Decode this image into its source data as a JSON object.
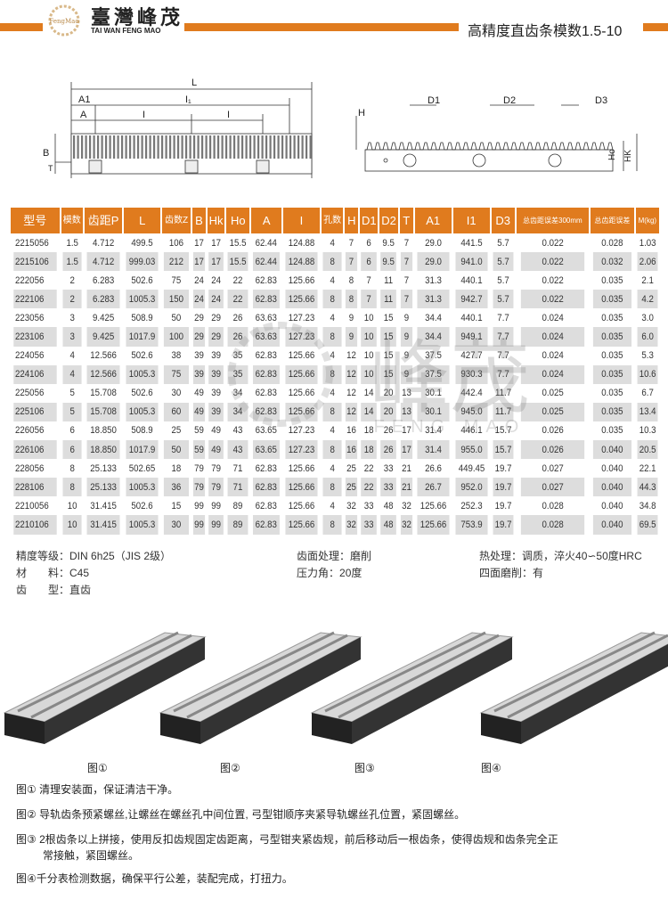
{
  "header": {
    "brand_cn": "臺灣峰茂",
    "brand_en": "TAI WAN FENG MAO",
    "logo_text": "FengMao",
    "title": "高精度直齿条模数1.5-10",
    "accent": "#e07b1e"
  },
  "drawing": {
    "labels": {
      "L": "L",
      "A1": "A1",
      "A": "A",
      "I": "I",
      "I1": "I₁",
      "B": "B",
      "T": "T",
      "H": "H",
      "D1": "D1",
      "D2": "D2",
      "D3": "D3",
      "Ho": "Ho",
      "Hk": "HK"
    }
  },
  "table": {
    "headers": [
      "型号",
      "模数",
      "齿距P",
      "L",
      "齿数Z",
      "B",
      "Hk",
      "Ho",
      "A",
      "I",
      "孔数",
      "H",
      "D1",
      "D2",
      "T",
      "A1",
      "I1",
      "D3",
      "总齿距误差300mm",
      "总齿距误差",
      "M(kg)"
    ],
    "rows": [
      [
        "2215056",
        "1.5",
        "4.712",
        "499.5",
        "106",
        "17",
        "17",
        "15.5",
        "62.44",
        "124.88",
        "4",
        "7",
        "6",
        "9.5",
        "7",
        "29.0",
        "441.5",
        "5.7",
        "0.022",
        "0.028",
        "1.03"
      ],
      [
        "2215106",
        "1.5",
        "4.712",
        "999.03",
        "212",
        "17",
        "17",
        "15.5",
        "62.44",
        "124.88",
        "8",
        "7",
        "6",
        "9.5",
        "7",
        "29.0",
        "941.0",
        "5.7",
        "0.022",
        "0.032",
        "2.06"
      ],
      [
        "222056",
        "2",
        "6.283",
        "502.6",
        "75",
        "24",
        "24",
        "22",
        "62.83",
        "125.66",
        "4",
        "8",
        "7",
        "11",
        "7",
        "31.3",
        "440.1",
        "5.7",
        "0.022",
        "0.035",
        "2.1"
      ],
      [
        "222106",
        "2",
        "6.283",
        "1005.3",
        "150",
        "24",
        "24",
        "22",
        "62.83",
        "125.66",
        "8",
        "8",
        "7",
        "11",
        "7",
        "31.3",
        "942.7",
        "5.7",
        "0.022",
        "0.035",
        "4.2"
      ],
      [
        "223056",
        "3",
        "9.425",
        "508.9",
        "50",
        "29",
        "29",
        "26",
        "63.63",
        "127.23",
        "4",
        "9",
        "10",
        "15",
        "9",
        "34.4",
        "440.1",
        "7.7",
        "0.024",
        "0.035",
        "3.0"
      ],
      [
        "223106",
        "3",
        "9.425",
        "1017.9",
        "100",
        "29",
        "29",
        "26",
        "63.63",
        "127.23",
        "8",
        "9",
        "10",
        "15",
        "9",
        "34.4",
        "949.1",
        "7.7",
        "0.024",
        "0.035",
        "6.0"
      ],
      [
        "224056",
        "4",
        "12.566",
        "502.6",
        "38",
        "39",
        "39",
        "35",
        "62.83",
        "125.66",
        "4",
        "12",
        "10",
        "15",
        "9",
        "37.5",
        "427.7",
        "7.7",
        "0.024",
        "0.035",
        "5.3"
      ],
      [
        "224106",
        "4",
        "12.566",
        "1005.3",
        "75",
        "39",
        "39",
        "35",
        "62.83",
        "125.66",
        "8",
        "12",
        "10",
        "15",
        "9",
        "37.5",
        "930.3",
        "7.7",
        "0.024",
        "0.035",
        "10.6"
      ],
      [
        "225056",
        "5",
        "15.708",
        "502.6",
        "30",
        "49",
        "39",
        "34",
        "62.83",
        "125.66",
        "4",
        "12",
        "14",
        "20",
        "13",
        "30.1",
        "442.4",
        "11.7",
        "0.025",
        "0.035",
        "6.7"
      ],
      [
        "225106",
        "5",
        "15.708",
        "1005.3",
        "60",
        "49",
        "39",
        "34",
        "62.83",
        "125.66",
        "8",
        "12",
        "14",
        "20",
        "13",
        "30.1",
        "945.0",
        "11.7",
        "0.025",
        "0.035",
        "13.4"
      ],
      [
        "226056",
        "6",
        "18.850",
        "508.9",
        "25",
        "59",
        "49",
        "43",
        "63.65",
        "127.23",
        "4",
        "16",
        "18",
        "26",
        "17",
        "31.4",
        "446.1",
        "15.7",
        "0.026",
        "0.035",
        "10.3"
      ],
      [
        "226106",
        "6",
        "18.850",
        "1017.9",
        "50",
        "59",
        "49",
        "43",
        "63.65",
        "127.23",
        "8",
        "16",
        "18",
        "26",
        "17",
        "31.4",
        "955.0",
        "15.7",
        "0.026",
        "0.040",
        "20.5"
      ],
      [
        "228056",
        "8",
        "25.133",
        "502.65",
        "18",
        "79",
        "79",
        "71",
        "62.83",
        "125.66",
        "4",
        "25",
        "22",
        "33",
        "21",
        "26.6",
        "449.45",
        "19.7",
        "0.027",
        "0.040",
        "22.1"
      ],
      [
        "228106",
        "8",
        "25.133",
        "1005.3",
        "36",
        "79",
        "79",
        "71",
        "62.83",
        "125.66",
        "8",
        "25",
        "22",
        "33",
        "21",
        "26.7",
        "952.0",
        "19.7",
        "0.027",
        "0.040",
        "44.3"
      ],
      [
        "2210056",
        "10",
        "31.415",
        "502.6",
        "15",
        "99",
        "99",
        "89",
        "62.83",
        "125.66",
        "4",
        "32",
        "33",
        "48",
        "32",
        "125.66",
        "252.3",
        "19.7",
        "0.028",
        "0.040",
        "34.8"
      ],
      [
        "2210106",
        "10",
        "31.415",
        "1005.3",
        "30",
        "99",
        "99",
        "89",
        "62.83",
        "125.66",
        "8",
        "32",
        "33",
        "48",
        "32",
        "125.66",
        "753.9",
        "19.7",
        "0.028",
        "0.040",
        "69.5"
      ]
    ]
  },
  "watermark": {
    "cn": "峰茂",
    "en": "FENG  MAO"
  },
  "specs": [
    {
      "label": "精度等级：",
      "value": "DIN 6h25（JIS 2级）"
    },
    {
      "label": "材　　料：",
      "value": "C45"
    },
    {
      "label": "齿　　型：",
      "value": "直齿"
    },
    {
      "label": "齿面处理：",
      "value": "磨削"
    },
    {
      "label": "压力角：",
      "value": "20度"
    },
    {
      "label": "热处理：",
      "value": "调质，淬火40∽50度HRC"
    },
    {
      "label": "四面磨削：",
      "value": "有"
    }
  ],
  "figures": [
    "图①",
    "图②",
    "图③",
    "图④"
  ],
  "notes": [
    "图① 清理安装面，保证清洁干净。",
    "图② 导轨齿条预紧螺丝,让螺丝在螺丝孔中间位置, 弓型钳顺序夹紧导轨螺丝孔位置，紧固螺丝。",
    "图③ 2根齿条以上拼接，使用反扣齿规固定齿距离，弓型钳夹紧齿规，前后移动后一根齿条，使得齿规和齿条完全正",
    "常接触，紧固螺丝。",
    "图④千分表检测数据，确保平行公差，装配完成，打扭力。"
  ]
}
